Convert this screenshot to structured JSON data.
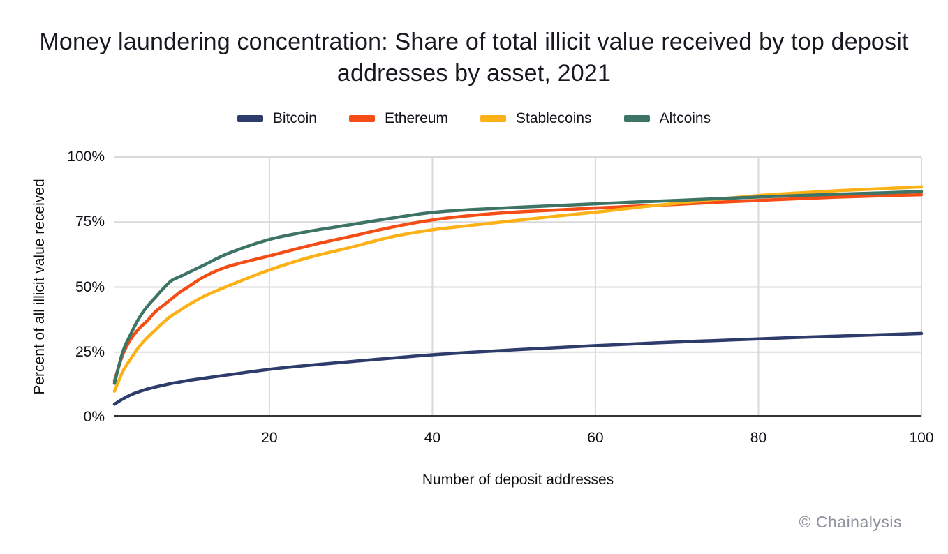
{
  "chart_data": {
    "type": "line",
    "title": "Money laundering concentration: Share of total illicit value received by top deposit addresses by asset, 2021",
    "xlabel": "Number of deposit addresses",
    "ylabel": "Percent of all illicit value received",
    "source": "© Chainalysis",
    "xlim": [
      1,
      100
    ],
    "ylim": [
      0,
      100
    ],
    "x_ticks": [
      20,
      40,
      60,
      80,
      100
    ],
    "y_ticks": [
      0,
      25,
      50,
      75,
      100
    ],
    "y_tick_labels": [
      "0%",
      "25%",
      "50%",
      "75%",
      "100%"
    ],
    "grid": true,
    "legend_position": "top",
    "axis_color": "#333333",
    "grid_color": "#d9d9d9",
    "x": [
      1,
      2,
      3,
      4,
      5,
      6,
      7,
      8,
      9,
      10,
      12,
      15,
      20,
      25,
      30,
      35,
      40,
      45,
      50,
      55,
      60,
      65,
      70,
      75,
      80,
      85,
      90,
      95,
      100
    ],
    "series": [
      {
        "name": "Bitcoin",
        "color": "#2e3c6b",
        "values": [
          5,
          7,
          8.6,
          9.8,
          10.8,
          11.6,
          12.3,
          13,
          13.5,
          14.1,
          15,
          16.3,
          18.4,
          20,
          21.4,
          22.7,
          24,
          25,
          25.9,
          26.7,
          27.5,
          28.2,
          28.9,
          29.5,
          30.1,
          30.7,
          31.2,
          31.7,
          32.2
        ]
      },
      {
        "name": "Ethereum",
        "color": "#f44d16",
        "values": [
          14,
          24,
          30,
          34,
          37,
          40.5,
          43,
          45.5,
          48,
          50,
          54,
          58,
          62,
          66,
          69.5,
          73,
          75.8,
          77.6,
          78.8,
          79.6,
          80.4,
          81.1,
          81.8,
          82.6,
          83.3,
          84,
          84.6,
          85.1,
          85.5
        ]
      },
      {
        "name": "Stablecoins",
        "color": "#fcb216",
        "values": [
          10,
          17.5,
          22.5,
          27,
          30.5,
          33.5,
          36.5,
          39,
          41,
          43,
          46.5,
          50.5,
          56.6,
          61.5,
          65.3,
          69.3,
          72,
          73.8,
          75.5,
          77.2,
          78.8,
          80.6,
          82.2,
          83.8,
          85.2,
          86.2,
          87.1,
          87.8,
          88.5
        ]
      },
      {
        "name": "Altcoins",
        "color": "#3e7466",
        "values": [
          13,
          25,
          32,
          38,
          42.5,
          46,
          49.5,
          52.5,
          54,
          55.5,
          58.5,
          63,
          68.3,
          71.5,
          74,
          76.5,
          78.7,
          79.8,
          80.6,
          81.3,
          82,
          82.7,
          83.3,
          84,
          84.6,
          85.2,
          85.7,
          86.2,
          86.7
        ]
      }
    ]
  }
}
